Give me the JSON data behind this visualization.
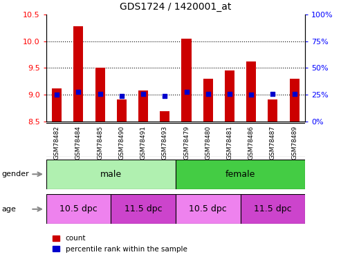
{
  "title": "GDS1724 / 1420001_at",
  "samples": [
    "GSM78482",
    "GSM78484",
    "GSM78485",
    "GSM78490",
    "GSM78491",
    "GSM78493",
    "GSM78479",
    "GSM78480",
    "GSM78481",
    "GSM78486",
    "GSM78487",
    "GSM78489"
  ],
  "count_values": [
    9.12,
    10.28,
    9.5,
    8.92,
    9.08,
    8.7,
    10.05,
    9.3,
    9.45,
    9.62,
    8.92,
    9.3
  ],
  "percentile_values": [
    25,
    28,
    26,
    24,
    26,
    24,
    28,
    26,
    26,
    25,
    26,
    26
  ],
  "ylim_left": [
    8.5,
    10.5
  ],
  "ylim_right": [
    0,
    100
  ],
  "yticks_left": [
    8.5,
    9.0,
    9.5,
    10.0,
    10.5
  ],
  "yticks_right": [
    0,
    25,
    50,
    75,
    100
  ],
  "bar_color": "#cc0000",
  "dot_color": "#0000cc",
  "bar_width": 0.45,
  "dot_size": 18,
  "gender_labels": [
    "male",
    "female"
  ],
  "gender_color_light": "#b0f0b0",
  "gender_color_dark": "#44cc44",
  "age_labels": [
    "10.5 dpc",
    "11.5 dpc",
    "10.5 dpc",
    "11.5 dpc"
  ],
  "age_color_light": "#ee82ee",
  "age_color_dark": "#cc44cc",
  "tick_label_area_color": "#cccccc",
  "legend_count_label": "count",
  "legend_pct_label": "percentile rank within the sample"
}
